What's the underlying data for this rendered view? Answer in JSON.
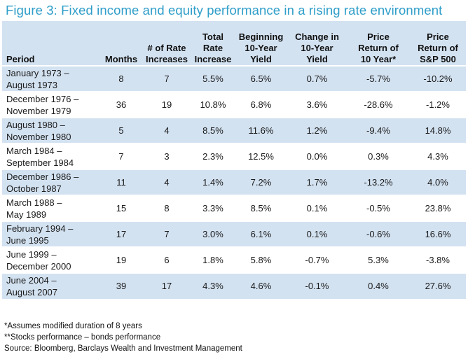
{
  "title": "Figure 3: Fixed income and equity performance in a rising rate environment",
  "columns": [
    {
      "line1": "Period",
      "line2": "",
      "line3": ""
    },
    {
      "line1": "Months",
      "line2": "",
      "line3": ""
    },
    {
      "line1": "# of Rate",
      "line2": "Increases",
      "line3": ""
    },
    {
      "line1": "Total",
      "line2": "Rate",
      "line3": "Increase"
    },
    {
      "line1": "Beginning",
      "line2": "10-Year",
      "line3": "Yield"
    },
    {
      "line1": "Change in",
      "line2": "10-Year",
      "line3": "Yield"
    },
    {
      "line1": "Price",
      "line2": "Return of",
      "line3": "10 Year*"
    },
    {
      "line1": "Price",
      "line2": "Return of",
      "line3": "S&P 500"
    }
  ],
  "rows": [
    {
      "period1": "January 1973 –",
      "period2": "August 1973",
      "months": "8",
      "increases": "7",
      "total_increase": "5.5%",
      "beginning_yield": "6.5%",
      "change_yield": "0.7%",
      "return_10yr": "-5.7%",
      "return_sp500": "-10.2%"
    },
    {
      "period1": "December 1976 –",
      "period2": "November 1979",
      "months": "36",
      "increases": "19",
      "total_increase": "10.8%",
      "beginning_yield": "6.8%",
      "change_yield": "3.6%",
      "return_10yr": "-28.6%",
      "return_sp500": "-1.2%"
    },
    {
      "period1": "August 1980 –",
      "period2": "November 1980",
      "months": "5",
      "increases": "4",
      "total_increase": "8.5%",
      "beginning_yield": "11.6%",
      "change_yield": "1.2%",
      "return_10yr": "-9.4%",
      "return_sp500": "14.8%"
    },
    {
      "period1": "March 1984 –",
      "period2": "September 1984",
      "months": "7",
      "increases": "3",
      "total_increase": "2.3%",
      "beginning_yield": "12.5%",
      "change_yield": "0.0%",
      "return_10yr": "0.3%",
      "return_sp500": "4.3%"
    },
    {
      "period1": "December 1986 –",
      "period2": "October 1987",
      "months": "11",
      "increases": "4",
      "total_increase": "1.4%",
      "beginning_yield": "7.2%",
      "change_yield": "1.7%",
      "return_10yr": "-13.2%",
      "return_sp500": "4.0%"
    },
    {
      "period1": "March 1988 –",
      "period2": "May 1989",
      "months": "15",
      "increases": "8",
      "total_increase": "3.3%",
      "beginning_yield": "8.5%",
      "change_yield": "0.1%",
      "return_10yr": "-0.5%",
      "return_sp500": "23.8%"
    },
    {
      "period1": "February 1994 –",
      "period2": "June 1995",
      "months": "17",
      "increases": "7",
      "total_increase": "3.0%",
      "beginning_yield": "6.1%",
      "change_yield": "0.1%",
      "return_10yr": "-0.6%",
      "return_sp500": "16.6%"
    },
    {
      "period1": "June 1999 –",
      "period2": "December 2000",
      "months": "19",
      "increases": "6",
      "total_increase": "1.8%",
      "beginning_yield": "5.8%",
      "change_yield": "-0.7%",
      "return_10yr": "5.3%",
      "return_sp500": "-3.8%"
    },
    {
      "period1": "June 2004 –",
      "period2": "August 2007",
      "months": "39",
      "increases": "17",
      "total_increase": "4.3%",
      "beginning_yield": "4.6%",
      "change_yield": "-0.1%",
      "return_10yr": "0.4%",
      "return_sp500": "27.6%"
    }
  ],
  "notes": [
    "*Assumes modified duration of 8 years",
    "**Stocks performance – bonds performance",
    "Source: Bloomberg, Barclays Wealth and Investment Management"
  ],
  "colors": {
    "title": "#2f9ec9",
    "band": "#d3e2f1"
  }
}
